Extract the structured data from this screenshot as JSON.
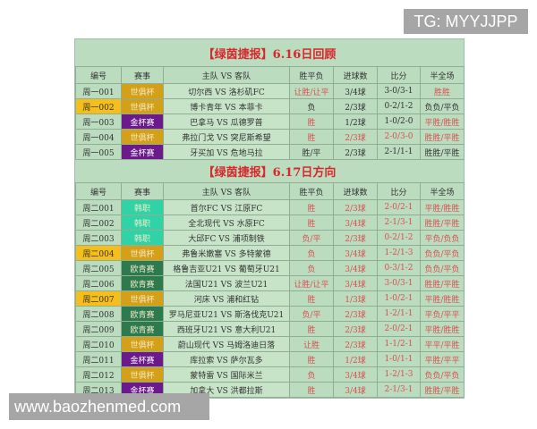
{
  "watermarks": {
    "top_right": "TG: MYYJJPP",
    "bottom_left": "www.baozhenmed.com"
  },
  "colors": {
    "世俱杯": "#d4a017",
    "金杯赛": "#6a1a8a",
    "韩职": "#2fd3a6",
    "欧青赛": "#2e7a4f",
    "title_red": "#d8262a",
    "result_red": "#d85050",
    "highlight_yellow": "#f6be1a"
  },
  "headers": [
    "编号",
    "赛事",
    "主队 VS 客队",
    "胜平负",
    "进球数",
    "比分",
    "半全场"
  ],
  "sections": [
    {
      "title": "【绿茵捷报】6.16日回顾",
      "rows": [
        {
          "id": "周一001",
          "league": "世俱杯",
          "match": "切尔西 VS 洛杉矶FC",
          "wdl": "让胜/让平",
          "goals": "3/4球",
          "score": "3-0/3-1",
          "htft": "胜胜",
          "red": [
            "wdl",
            "htft"
          ]
        },
        {
          "id": "周一002",
          "league": "世俱杯",
          "match": "博卡青年 VS 本菲卡",
          "wdl": "负",
          "goals": "2/3球",
          "score": "0-2/1-2",
          "htft": "负负/平负",
          "red": [],
          "highlight": true
        },
        {
          "id": "周一003",
          "league": "金杯赛",
          "match": "巴拿马 VS 瓜德罗普",
          "wdl": "胜",
          "goals": "1/2球",
          "score": "1-0/2-0",
          "htft": "平胜/胜胜",
          "red": [
            "wdl",
            "htft"
          ]
        },
        {
          "id": "周一004",
          "league": "世俱杯",
          "match": "弗拉门戈 VS 突尼斯希望",
          "wdl": "胜",
          "goals": "2/3球",
          "score": "2-0/3-0",
          "htft": "胜胜/平胜",
          "red": [
            "wdl",
            "goals",
            "score",
            "htft"
          ]
        },
        {
          "id": "周一005",
          "league": "金杯赛",
          "match": "牙买加 VS 危地马拉",
          "wdl": "胜/平",
          "goals": "2/3球",
          "score": "2-1/1-1",
          "htft": "胜胜/平胜",
          "red": []
        }
      ]
    },
    {
      "title": "【绿茵捷报】6.17日方向",
      "rows": [
        {
          "id": "周二001",
          "league": "韩职",
          "match": "首尔FC VS 江原FC",
          "wdl": "胜",
          "goals": "2/3球",
          "score": "2-0/2-1",
          "htft": "平胜/胜胜",
          "red": [
            "wdl",
            "goals",
            "score",
            "htft"
          ]
        },
        {
          "id": "周二002",
          "league": "韩职",
          "match": "全北现代 VS 水原FC",
          "wdl": "胜",
          "goals": "3/4球",
          "score": "2-1/3-1",
          "htft": "胜胜/平胜",
          "red": [
            "wdl",
            "goals",
            "score",
            "htft"
          ]
        },
        {
          "id": "周二003",
          "league": "韩职",
          "match": "大邱FC VS 浦项制铁",
          "wdl": "负/平",
          "goals": "2/3球",
          "score": "0-2/1-2",
          "htft": "平负/负负",
          "red": [
            "wdl",
            "goals",
            "score",
            "htft"
          ]
        },
        {
          "id": "周二004",
          "league": "世俱杯",
          "match": "弗鲁米嫩塞 VS 多特蒙德",
          "wdl": "负",
          "goals": "3/4球",
          "score": "1-2/1-3",
          "htft": "负负/平负",
          "red": [
            "wdl",
            "goals",
            "score",
            "htft"
          ],
          "highlight": true
        },
        {
          "id": "周二005",
          "league": "欧青赛",
          "match": "格鲁吉亚U21 VS 葡萄牙U21",
          "wdl": "负",
          "goals": "3/4球",
          "score": "0-3/1-2",
          "htft": "负负/平负",
          "red": [
            "wdl",
            "goals",
            "score",
            "htft"
          ]
        },
        {
          "id": "周二006",
          "league": "欧青赛",
          "match": "法国U21 VS 波兰U21",
          "wdl": "让胜/让平",
          "goals": "3/4球",
          "score": "3-0/3-1",
          "htft": "胜胜/平胜",
          "red": [
            "wdl",
            "goals",
            "score",
            "htft"
          ]
        },
        {
          "id": "周二007",
          "league": "世俱杯",
          "match": "河床 VS 浦和红钻",
          "wdl": "胜",
          "goals": "1/3球",
          "score": "1-0/2-1",
          "htft": "平胜/胜胜",
          "red": [
            "wdl",
            "goals",
            "score",
            "htft"
          ],
          "highlight": true
        },
        {
          "id": "周二008",
          "league": "欧青赛",
          "match": "罗马尼亚U21 VS 斯洛伐克U21",
          "wdl": "负/平",
          "goals": "2/3球",
          "score": "1-2/1-1",
          "htft": "平负/平平",
          "red": [
            "wdl",
            "goals",
            "score",
            "htft"
          ]
        },
        {
          "id": "周二009",
          "league": "欧青赛",
          "match": "西班牙U21 VS 意大利U21",
          "wdl": "胜",
          "goals": "2/3球",
          "score": "2-0/2-1",
          "htft": "平胜/胜胜",
          "red": [
            "wdl",
            "goals",
            "score",
            "htft"
          ]
        },
        {
          "id": "周二010",
          "league": "世俱杯",
          "match": "蔚山现代 VS 马姆洛迪日落",
          "wdl": "让胜",
          "goals": "2/3球",
          "score": "1-1/2-1",
          "htft": "平平/平胜",
          "red": [
            "wdl",
            "goals",
            "score",
            "htft"
          ]
        },
        {
          "id": "周二011",
          "league": "金杯赛",
          "match": "库拉索 VS 萨尔瓦多",
          "wdl": "胜",
          "goals": "1/2球",
          "score": "1-0/1-1",
          "htft": "平胜/平平",
          "red": [
            "wdl",
            "goals",
            "score",
            "htft"
          ]
        },
        {
          "id": "周二012",
          "league": "世俱杯",
          "match": "蒙特雷 VS 国际米兰",
          "wdl": "负",
          "goals": "3/4球",
          "score": "1-2/1-3",
          "htft": "负负/平负",
          "red": [
            "wdl",
            "goals",
            "score",
            "htft"
          ]
        },
        {
          "id": "周二013",
          "league": "金杯赛",
          "match": "加拿大 VS 洪都拉斯",
          "wdl": "胜",
          "goals": "3/4球",
          "score": "2-1/3-1",
          "htft": "胜胜/平胜",
          "red": [
            "wdl",
            "goals",
            "score",
            "htft"
          ]
        }
      ]
    }
  ]
}
